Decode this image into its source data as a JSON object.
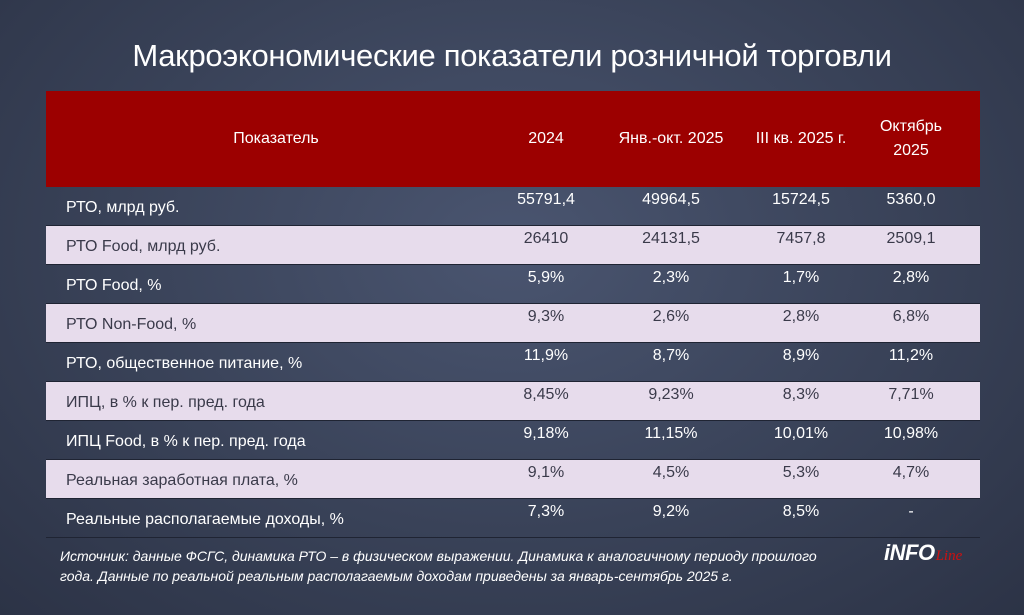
{
  "title": "Макроэкономические показатели розничной торговли",
  "chart_data": {
    "type": "table",
    "columns": [
      "Показатель",
      "2024",
      "Янв.-окт. 2025",
      "III кв. 2025 г.",
      "Октябрь 2025"
    ],
    "rows": [
      {
        "label": "РТО, млрд руб.",
        "values": [
          "55791,4",
          "49964,5",
          "15724,5",
          "5360,0"
        ]
      },
      {
        "label": "РТО Food, млрд руб.",
        "values": [
          "26410",
          "24131,5",
          "7457,8",
          "2509,1"
        ]
      },
      {
        "label": "РТО Food, %",
        "values": [
          "5,9%",
          "2,3%",
          "1,7%",
          "2,8%"
        ]
      },
      {
        "label": "РТО Non-Food, %",
        "values": [
          "9,3%",
          "2,6%",
          "2,8%",
          "6,8%"
        ]
      },
      {
        "label": "РТО, общественное питание, %",
        "values": [
          "11,9%",
          "8,7%",
          "8,9%",
          "11,2%"
        ]
      },
      {
        "label": "ИПЦ, в % к пер. пред. года",
        "values": [
          "8,45%",
          "9,23%",
          "8,3%",
          "7,71%"
        ]
      },
      {
        "label": "ИПЦ Food, в % к пер. пред. года",
        "values": [
          "9,18%",
          "11,15%",
          "10,01%",
          "10,98%"
        ]
      },
      {
        "label": "Реальная заработная плата, %",
        "values": [
          "9,1%",
          "4,5%",
          "5,3%",
          "4,7%"
        ]
      },
      {
        "label": "Реальные располагаемые доходы, %",
        "values": [
          "7,3%",
          "9,2%",
          "8,5%",
          "-"
        ]
      }
    ]
  },
  "header": {
    "col0": "Показатель",
    "col1": "2024",
    "col2": "Янв.-окт. 2025",
    "col3": "III кв. 2025 г.",
    "col4_line1": "Октябрь",
    "col4_line2": "2025"
  },
  "footnote": "Источник: данные ФСГС, динамика РТО – в физическом выражении. Динамика к аналогичному периоду прошлого года. Данные по реальной реальным располагаемым доходам приведены за январь-сентябрь 2025 г.",
  "logo": {
    "part1": "iNFO",
    "part2": "Line"
  },
  "colors": {
    "header_bg": "#9c0000",
    "row_light": "#e7dcec",
    "background": "#394258"
  }
}
